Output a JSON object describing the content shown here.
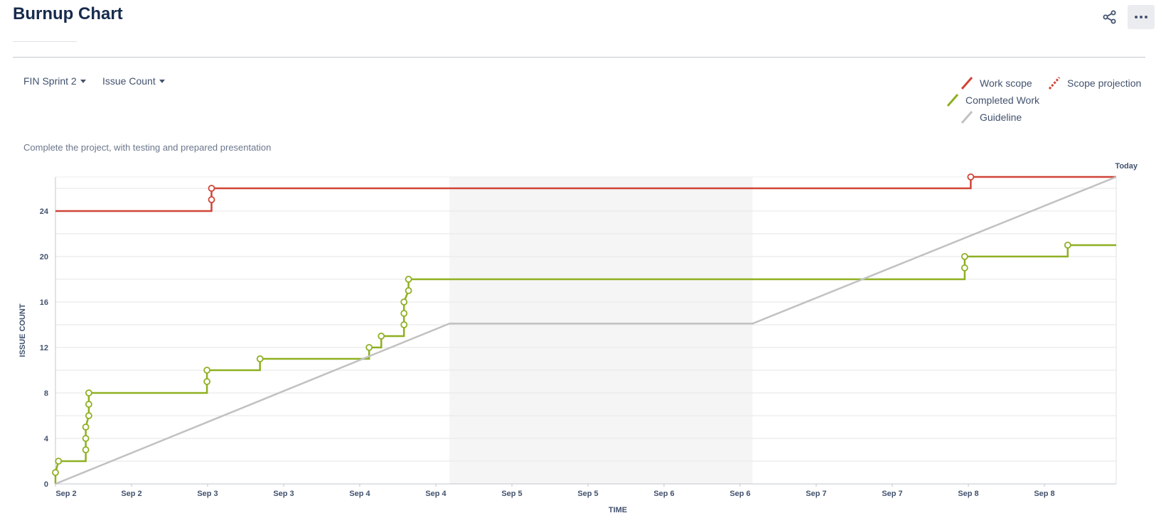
{
  "header": {
    "title": "Burnup Chart",
    "share_icon": "share-icon",
    "more_icon": "more-icon"
  },
  "controls": {
    "sprint": "FIN Sprint 2",
    "estimation": "Issue Count"
  },
  "legend": {
    "work_scope": "Work scope",
    "scope_projection": "Scope projection",
    "completed_work": "Completed Work",
    "guideline": "Guideline"
  },
  "sprint_goal": "Complete the project, with testing and prepared presentation",
  "colors": {
    "work_scope": "#d04437",
    "completed_work": "#8eb021",
    "guideline": "#c1c1c1",
    "non_working_band": "#f5f5f5"
  },
  "chart_data": {
    "type": "line",
    "xlabel": "TIME",
    "ylabel": "ISSUE COUNT",
    "today_label": "Today",
    "x_ticks": [
      "Sep 2",
      "Sep 2",
      "Sep 3",
      "Sep 3",
      "Sep 4",
      "Sep 4",
      "Sep 5",
      "Sep 5",
      "Sep 6",
      "Sep 6",
      "Sep 7",
      "Sep 7",
      "Sep 8",
      "Sep 8"
    ],
    "x_range": [
      0,
      7
    ],
    "ylim": [
      0,
      26
    ],
    "y_ticks": [
      0,
      4,
      8,
      12,
      16,
      20,
      24
    ],
    "grid": true,
    "legend_position": "top-right",
    "non_working_period": [
      2.6,
      4.6
    ],
    "series": [
      {
        "name": "Work scope",
        "key": "work_scope",
        "points": [
          [
            0,
            24
          ],
          [
            1.03,
            24
          ],
          [
            1.03,
            25
          ],
          [
            1.03,
            26
          ],
          [
            6.04,
            26
          ],
          [
            6.04,
            27
          ],
          [
            7.0,
            27
          ]
        ],
        "markers": [
          [
            1.03,
            25
          ],
          [
            1.03,
            26
          ],
          [
            6.04,
            27
          ]
        ]
      },
      {
        "name": "Completed Work",
        "key": "completed_work",
        "points": [
          [
            0,
            0
          ],
          [
            0.0,
            1
          ],
          [
            0.02,
            2
          ],
          [
            0.2,
            2
          ],
          [
            0.2,
            3
          ],
          [
            0.2,
            4
          ],
          [
            0.2,
            5
          ],
          [
            0.22,
            6
          ],
          [
            0.22,
            7
          ],
          [
            0.22,
            8
          ],
          [
            1.0,
            8
          ],
          [
            1.0,
            9
          ],
          [
            1.0,
            10
          ],
          [
            1.35,
            10
          ],
          [
            1.35,
            11
          ],
          [
            2.07,
            11
          ],
          [
            2.07,
            12
          ],
          [
            2.15,
            12
          ],
          [
            2.15,
            13
          ],
          [
            2.3,
            13
          ],
          [
            2.3,
            14
          ],
          [
            2.3,
            15
          ],
          [
            2.3,
            16
          ],
          [
            2.33,
            17
          ],
          [
            2.33,
            18
          ],
          [
            6.0,
            18
          ],
          [
            6.0,
            19
          ],
          [
            6.0,
            20
          ],
          [
            6.68,
            20
          ],
          [
            6.68,
            21
          ],
          [
            7.0,
            21
          ]
        ],
        "markers": [
          [
            0.0,
            1
          ],
          [
            0.02,
            2
          ],
          [
            0.2,
            3
          ],
          [
            0.2,
            4
          ],
          [
            0.2,
            5
          ],
          [
            0.22,
            6
          ],
          [
            0.22,
            7
          ],
          [
            0.22,
            8
          ],
          [
            1.0,
            9
          ],
          [
            1.0,
            10
          ],
          [
            1.35,
            11
          ],
          [
            2.07,
            12
          ],
          [
            2.15,
            13
          ],
          [
            2.3,
            14
          ],
          [
            2.3,
            15
          ],
          [
            2.3,
            16
          ],
          [
            2.33,
            17
          ],
          [
            2.33,
            18
          ],
          [
            6.0,
            19
          ],
          [
            6.0,
            20
          ],
          [
            6.68,
            21
          ]
        ]
      },
      {
        "name": "Guideline",
        "key": "guideline",
        "points": [
          [
            0,
            0
          ],
          [
            2.6,
            14.1
          ],
          [
            4.6,
            14.1
          ],
          [
            7.0,
            27
          ]
        ],
        "markers": []
      }
    ]
  }
}
